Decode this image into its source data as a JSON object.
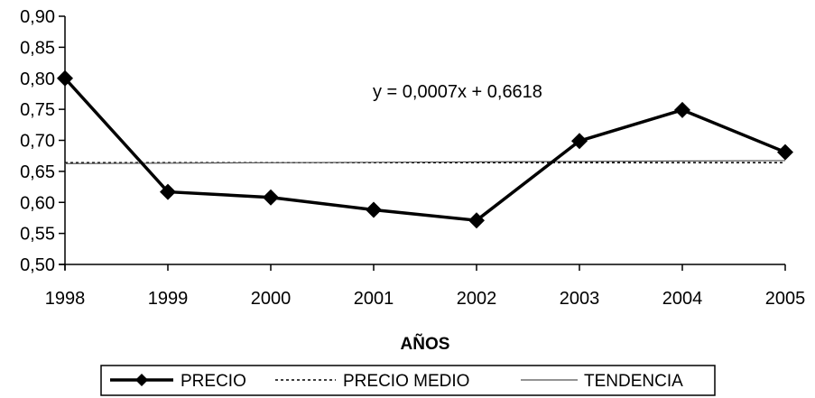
{
  "chart_data": {
    "type": "line",
    "xlabel": "AÑOS",
    "ylabel": "",
    "x": [
      "1998",
      "1999",
      "2000",
      "2001",
      "2002",
      "2003",
      "2004",
      "2005"
    ],
    "ylim": [
      0.5,
      0.9
    ],
    "y_ticks": [
      "0,50",
      "0,55",
      "0,60",
      "0,65",
      "0,70",
      "0,75",
      "0,80",
      "0,85",
      "0,90"
    ],
    "series": [
      {
        "name": "PRECIO",
        "style": "solid-diamond",
        "color": "#000000",
        "values": [
          0.8,
          0.617,
          0.608,
          0.588,
          0.571,
          0.699,
          0.749,
          0.681
        ]
      },
      {
        "name": "PRECIO MEDIO",
        "style": "dotted",
        "color": "#000000",
        "values": [
          0.664,
          0.664,
          0.664,
          0.664,
          0.664,
          0.664,
          0.664,
          0.664
        ]
      },
      {
        "name": "TENDENCIA",
        "style": "thin-solid",
        "color": "#555555",
        "values": [
          0.6625,
          0.6632,
          0.6639,
          0.6646,
          0.6653,
          0.666,
          0.6667,
          0.6674
        ]
      }
    ],
    "annotation": "y = 0,0007x + 0,6618",
    "grid": false,
    "legend_position": "bottom"
  }
}
